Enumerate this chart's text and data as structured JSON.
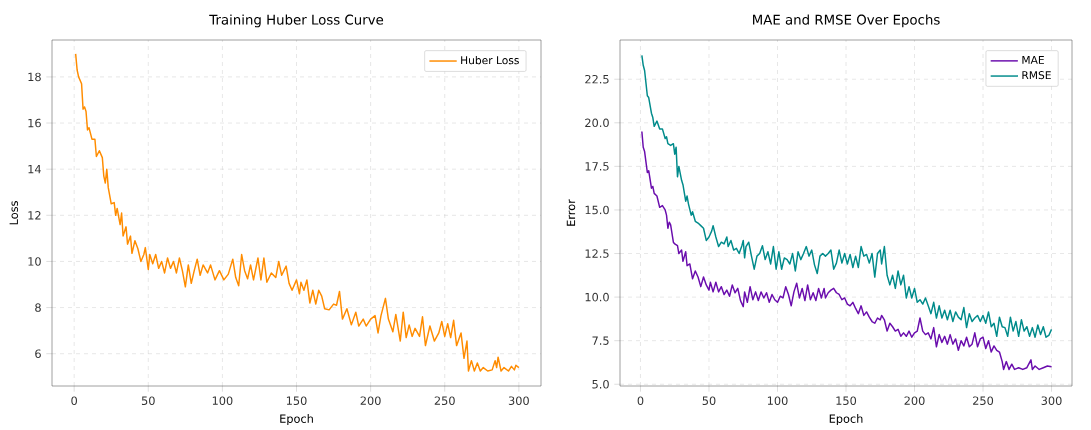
{
  "chart_data": [
    {
      "type": "line",
      "title": "Training Huber Loss Curve",
      "xlabel": "Epoch",
      "ylabel": "Loss",
      "xlim": [
        -14.95,
        314.95
      ],
      "ylim": [
        4.6,
        19.6
      ],
      "xticks": [
        0,
        50,
        100,
        150,
        200,
        250,
        300
      ],
      "yticks": [
        6,
        8,
        10,
        12,
        14,
        16,
        18
      ],
      "grid": true,
      "legend": "top right",
      "marker": "none",
      "line_style": "solid",
      "series": [
        {
          "name": "Huber Loss",
          "color": "#ff8c00",
          "x": [
            1,
            2,
            3,
            5,
            6,
            7,
            8,
            9,
            10,
            12,
            14,
            15,
            17,
            19,
            20,
            21,
            22,
            23,
            25,
            27,
            28,
            29,
            31,
            32,
            33,
            35,
            36,
            38,
            39,
            41,
            43,
            45,
            47,
            48,
            50,
            51,
            53,
            55,
            57,
            59,
            61,
            63,
            65,
            67,
            69,
            71,
            73,
            75,
            77,
            79,
            81,
            83,
            85,
            87,
            90,
            92,
            95,
            98,
            101,
            104,
            107,
            109,
            111,
            113,
            115,
            117,
            119,
            121,
            124,
            126,
            128,
            130,
            133,
            136,
            138,
            140,
            143,
            145,
            147,
            150,
            152,
            153,
            155,
            157,
            159,
            161,
            163,
            165,
            167,
            169,
            172,
            175,
            177,
            179,
            181,
            184,
            187,
            190,
            192,
            195,
            197,
            200,
            203,
            205,
            207,
            210,
            212,
            215,
            217,
            220,
            222,
            224,
            226,
            228,
            230,
            233,
            235,
            237,
            240,
            243,
            246,
            248,
            250,
            252,
            254,
            256,
            258,
            261,
            263,
            265,
            266,
            268,
            270,
            272,
            274,
            276,
            279,
            282,
            284,
            285,
            286,
            288,
            290,
            293,
            295,
            297,
            298,
            300
          ],
          "values": [
            19.0,
            18.3,
            18.0,
            17.7,
            16.6,
            16.7,
            16.5,
            15.7,
            15.8,
            15.3,
            15.3,
            14.55,
            14.8,
            14.5,
            13.7,
            13.4,
            14.0,
            13.2,
            12.5,
            12.55,
            12.0,
            12.3,
            11.6,
            12.1,
            11.1,
            11.5,
            10.75,
            11.1,
            10.35,
            10.9,
            10.55,
            10.0,
            10.3,
            10.6,
            9.65,
            10.3,
            9.9,
            10.3,
            9.7,
            10.0,
            9.5,
            10.15,
            9.7,
            10.0,
            9.5,
            10.15,
            9.6,
            8.9,
            9.85,
            9.05,
            9.6,
            10.1,
            9.4,
            9.85,
            9.5,
            9.85,
            9.2,
            9.6,
            9.2,
            9.45,
            10.1,
            9.3,
            8.95,
            10.3,
            9.6,
            9.25,
            9.85,
            9.2,
            10.15,
            9.2,
            10.15,
            9.1,
            9.5,
            9.3,
            10.0,
            9.4,
            9.8,
            9.05,
            8.75,
            9.2,
            8.6,
            9.1,
            8.75,
            9.2,
            8.2,
            8.75,
            8.15,
            8.75,
            8.5,
            7.95,
            7.9,
            8.15,
            8.1,
            8.7,
            7.5,
            7.95,
            7.25,
            7.8,
            7.2,
            7.5,
            7.2,
            7.5,
            7.65,
            6.9,
            7.65,
            8.4,
            7.5,
            6.95,
            7.7,
            6.55,
            7.8,
            6.7,
            7.25,
            6.75,
            7.1,
            6.75,
            7.6,
            6.35,
            7.2,
            6.55,
            6.9,
            7.4,
            6.75,
            7.3,
            6.7,
            7.45,
            6.35,
            6.9,
            5.8,
            6.55,
            5.25,
            5.7,
            5.25,
            5.6,
            5.25,
            5.4,
            5.25,
            5.3,
            5.7,
            5.4,
            5.85,
            5.25,
            5.4,
            5.25,
            5.45,
            5.3,
            5.5,
            5.4
          ]
        }
      ]
    },
    {
      "type": "line",
      "title": "MAE and RMSE Over Epochs",
      "xlabel": "Epoch",
      "ylabel": "Error",
      "xlim": [
        -14.95,
        314.95
      ],
      "ylim": [
        4.9,
        24.75
      ],
      "xticks": [
        0,
        50,
        100,
        150,
        200,
        250,
        300
      ],
      "yticks": [
        {
          "value": 5,
          "label": "5.0"
        },
        7.5,
        {
          "value": 10,
          "label": "10.0"
        },
        12.5,
        {
          "value": 15,
          "label": "15.0"
        },
        17.5,
        {
          "value": 20,
          "label": "20.0"
        },
        22.5
      ],
      "grid": true,
      "legend": "top right",
      "marker": "none",
      "line_style": "solid",
      "series": [
        {
          "name": "MAE",
          "color": "#6a0dad",
          "x": [
            1,
            2,
            3,
            5,
            6,
            8,
            9,
            10,
            12,
            14,
            16,
            18,
            19,
            20,
            21,
            22,
            24,
            25,
            27,
            28,
            30,
            31,
            33,
            34,
            36,
            38,
            40,
            42,
            44,
            46,
            48,
            50,
            51,
            53,
            55,
            57,
            59,
            61,
            63,
            65,
            67,
            69,
            71,
            73,
            75,
            76,
            78,
            80,
            82,
            84,
            86,
            88,
            90,
            92,
            94,
            96,
            98,
            100,
            102,
            104,
            106,
            108,
            110,
            112,
            114,
            116,
            118,
            120,
            122,
            124,
            126,
            128,
            130,
            132,
            134,
            135,
            137,
            139,
            141,
            143,
            145,
            147,
            149,
            151,
            153,
            155,
            157,
            159,
            161,
            163,
            165,
            167,
            169,
            171,
            173,
            175,
            176,
            178,
            180,
            182,
            184,
            186,
            188,
            190,
            192,
            194,
            196,
            198,
            200,
            202,
            204,
            206,
            208,
            210,
            212,
            214,
            216,
            218,
            220,
            222,
            224,
            226,
            228,
            230,
            232,
            234,
            236,
            238,
            240,
            242,
            244,
            246,
            248,
            250,
            252,
            254,
            256,
            258,
            260,
            262,
            264,
            265,
            267,
            269,
            271,
            273,
            276,
            279,
            282,
            285,
            286,
            288,
            291,
            294,
            297,
            300
          ],
          "values": [
            19.5,
            18.6,
            18.35,
            17.15,
            17.25,
            16.25,
            16.35,
            15.95,
            15.8,
            15.15,
            15.25,
            15.0,
            14.7,
            13.95,
            14.3,
            14.15,
            13.15,
            13.05,
            12.95,
            12.5,
            12.7,
            12.05,
            12.6,
            11.8,
            11.9,
            11.05,
            11.5,
            11.15,
            10.6,
            11.15,
            10.7,
            10.4,
            10.85,
            10.3,
            10.85,
            10.3,
            10.6,
            10.15,
            10.4,
            10.05,
            10.7,
            10.25,
            10.5,
            9.8,
            9.45,
            10.3,
            9.7,
            10.6,
            9.85,
            10.3,
            9.8,
            10.3,
            9.95,
            10.25,
            9.7,
            10.15,
            9.85,
            9.7,
            10.05,
            9.95,
            10.6,
            10.15,
            9.5,
            10.3,
            10.8,
            9.95,
            10.5,
            9.8,
            10.7,
            9.85,
            10.25,
            9.8,
            10.5,
            9.95,
            10.5,
            9.95,
            10.25,
            10.4,
            10.5,
            10.25,
            10.15,
            9.85,
            9.95,
            9.6,
            9.5,
            9.7,
            9.35,
            9.05,
            9.5,
            8.95,
            9.15,
            8.85,
            8.6,
            8.5,
            8.8,
            8.7,
            8.95,
            8.7,
            8.05,
            8.5,
            8.3,
            8.05,
            8.15,
            7.75,
            7.95,
            7.75,
            8.05,
            7.7,
            7.95,
            8.05,
            8.8,
            8.05,
            7.85,
            7.95,
            7.6,
            8.25,
            7.15,
            7.85,
            7.4,
            7.75,
            7.3,
            7.85,
            7.3,
            7.6,
            6.95,
            7.5,
            7.2,
            7.7,
            7.15,
            7.3,
            7.95,
            7.15,
            7.6,
            7.7,
            7.05,
            7.5,
            6.85,
            7.2,
            6.95,
            6.85,
            6.3,
            5.85,
            6.3,
            5.85,
            6.15,
            5.85,
            5.95,
            5.85,
            5.95,
            6.4,
            5.85,
            6.05,
            5.85,
            5.95,
            6.05,
            6.0
          ]
        },
        {
          "name": "RMSE",
          "color": "#008b8b",
          "x": [
            1,
            2,
            3,
            5,
            6,
            8,
            9,
            10,
            12,
            14,
            16,
            18,
            19,
            20,
            22,
            24,
            25,
            26,
            27,
            28,
            30,
            31,
            33,
            34,
            35,
            37,
            38,
            40,
            42,
            44,
            46,
            48,
            50,
            52,
            53,
            55,
            57,
            59,
            61,
            63,
            64,
            66,
            68,
            70,
            72,
            74,
            75,
            76,
            77,
            79,
            81,
            83,
            85,
            87,
            89,
            91,
            93,
            95,
            97,
            99,
            101,
            103,
            105,
            107,
            109,
            111,
            113,
            115,
            117,
            119,
            121,
            123,
            125,
            127,
            129,
            131,
            133,
            135,
            137,
            139,
            141,
            143,
            145,
            147,
            149,
            151,
            153,
            155,
            157,
            159,
            161,
            163,
            165,
            167,
            169,
            171,
            173,
            175,
            176,
            178,
            180,
            182,
            184,
            186,
            188,
            190,
            192,
            194,
            196,
            198,
            200,
            202,
            204,
            206,
            208,
            210,
            212,
            214,
            216,
            218,
            220,
            222,
            224,
            226,
            228,
            230,
            232,
            234,
            236,
            238,
            240,
            242,
            244,
            246,
            248,
            250,
            252,
            254,
            256,
            258,
            260,
            262,
            264,
            266,
            268,
            270,
            272,
            274,
            276,
            278,
            280,
            282,
            284,
            286,
            288,
            290,
            292,
            294,
            296,
            298,
            300
          ],
          "values": [
            23.87,
            23.3,
            23.0,
            21.55,
            21.45,
            20.55,
            20.3,
            19.8,
            20.1,
            19.65,
            19.65,
            19.1,
            19.2,
            18.8,
            18.7,
            18.8,
            18.2,
            18.6,
            16.9,
            17.5,
            16.7,
            16.45,
            15.5,
            15.8,
            15.35,
            14.7,
            14.9,
            14.35,
            14.25,
            14.1,
            13.95,
            13.25,
            13.45,
            13.8,
            14.1,
            13.45,
            12.9,
            13.15,
            13.05,
            13.45,
            12.9,
            13.25,
            12.7,
            12.8,
            12.5,
            12.95,
            13.25,
            12.25,
            12.9,
            13.15,
            12.35,
            11.6,
            12.35,
            12.5,
            12.95,
            12.15,
            12.6,
            11.9,
            12.9,
            11.6,
            12.6,
            11.6,
            12.25,
            12.15,
            11.9,
            12.5,
            11.5,
            12.6,
            12.15,
            12.5,
            12.9,
            12.35,
            12.7,
            11.85,
            11.35,
            12.35,
            12.5,
            12.35,
            12.5,
            12.7,
            11.6,
            11.95,
            12.7,
            11.95,
            12.5,
            11.9,
            12.45,
            11.7,
            12.35,
            11.7,
            12.9,
            12.35,
            12.45,
            11.95,
            12.5,
            11.15,
            12.5,
            12.7,
            11.9,
            12.9,
            11.25,
            10.7,
            11.25,
            10.5,
            11.5,
            10.7,
            11.25,
            9.95,
            10.6,
            9.95,
            10.5,
            9.7,
            9.85,
            9.6,
            9.95,
            9.5,
            9.05,
            9.7,
            8.8,
            9.5,
            8.8,
            9.25,
            8.7,
            9.25,
            8.6,
            9.15,
            8.85,
            8.7,
            9.4,
            8.25,
            9.05,
            8.6,
            8.8,
            8.95,
            8.6,
            8.95,
            8.5,
            9.15,
            8.3,
            8.5,
            7.75,
            8.85,
            8.3,
            8.25,
            7.75,
            8.85,
            8.05,
            8.6,
            7.75,
            8.7,
            8.05,
            8.3,
            7.75,
            8.25,
            7.7,
            8.4,
            7.85,
            8.3,
            7.7,
            7.8,
            8.15
          ]
        }
      ]
    }
  ]
}
